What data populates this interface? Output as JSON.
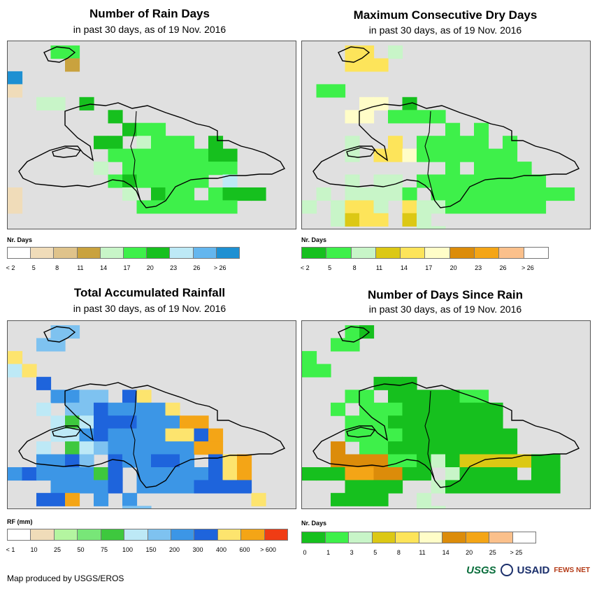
{
  "panels": [
    {
      "id": "rain-days",
      "title": "Number of Rain Days",
      "subtitle": "in past 30 days, as of 19 Nov. 2016",
      "legend_title": "Nr. Days",
      "legend_colors": [
        "#ffffff",
        "#f0dcb9",
        "#dfc38b",
        "#c9a23e",
        "#c8f5c8",
        "#3ef04a",
        "#16c01e",
        "#bde9f6",
        "#64b6ee",
        "#1e90d2"
      ],
      "legend_labels": [
        "< 2",
        "5",
        "8",
        "11",
        "14",
        "17",
        "20",
        "23",
        "26",
        "> 26"
      ],
      "grid": {
        "rows": [
          "...66.C.........",
          "....4C.C........",
          "A...............",
          "2C..............",
          "..55.7...........",
          "..CCCC.7BBB......",
          "..BBBBBC766......",
          "...CCC77C5666.7...",
          "...CCCC666666677..",
          "..CBC.5.66666666..",
          "..CBCCB6766666.8C.",
          "2.CB.BCC5.766B6777",
          "2.B.BBBC.6666666.B",
          "..BBC.BC.CCB.B...C",
          "........CC........"
        ]
      }
    },
    {
      "id": "max-dry-days",
      "title": "Maximum Consecutive Dry Days",
      "subtitle": "in past 30 days, as of 19 Nov. 2016",
      "legend_title": "Nr. Days",
      "legend_colors": [
        "#16c01e",
        "#3ef04a",
        "#c8f5c8",
        "#dcc814",
        "#fde45a",
        "#fffdc8",
        "#dc8c0a",
        "#f4a516",
        "#fbc08b",
        "#ffffff"
      ],
      "legend_labels": [
        "< 2",
        "5",
        "8",
        "11",
        "14",
        "17",
        "20",
        "23",
        "26",
        "> 26"
      ],
      "grid": {
        "rows": [
          "...55.3.........",
          "...555..........",
          "C...............",
          "C22.............",
          "....66.1.........",
          "...66.2222.......",
          "..........2.2.....",
          "...3..5.22222.2...",
          "...3.5562222222...",
          "..........2.2222..",
          "...3.33.222222222.",
          "C3.33332.2222222222",
          "3.3553.5332222222.",
          "..3455.43.........",
          "........33........"
        ]
      }
    },
    {
      "id": "total-rainfall",
      "title": "Total Accumulated Rainfall",
      "subtitle": "in past 30 days, as of 19 Nov. 2016",
      "legend_title": "RF (mm)",
      "legend_colors": [
        "#ffffff",
        "#f0dcb9",
        "#b4f5a0",
        "#78e678",
        "#3ec83e",
        "#bde9f6",
        "#7ec2f0",
        "#3c96e6",
        "#1e64dc",
        "#fde46e",
        "#f4a516",
        "#f03c14"
      ],
      "legend_labels": [
        "< 1",
        "10",
        "25",
        "50",
        "75",
        "100",
        "150",
        "200",
        "300",
        "400",
        "600",
        "> 600"
      ],
      "grid": {
        "rows": [
          "...77..........",
          "..77............",
          "A...............",
          "6A..............",
          "..9.............",
          "...8877.9A.......",
          "..6.7798888A.....",
          "...656999888KB...",
          "...66898888AA9B..",
          "..6.567888888KB..",
          "..8897.988998.9AK.",
          "89888859.888889AK.",
          "...88889.88889999.",
          "..99B.8.8........A",
          "........77........"
        ]
      }
    },
    {
      "id": "days-since-rain",
      "title": "Number of Days Since Rain",
      "subtitle": "in past 30 days, as of 19 Nov. 2016",
      "legend_title": "Nr. Days",
      "legend_colors": [
        "#16c01e",
        "#3ef04a",
        "#c8f5c8",
        "#dcc814",
        "#fde45a",
        "#fffdc8",
        "#dc8c0a",
        "#f4a516",
        "#fbc08b",
        "#ffffff"
      ],
      "legend_labels": [
        "0",
        "1",
        "3",
        "5",
        "8",
        "11",
        "14",
        "20",
        "25",
        "> 25"
      ],
      "grid": {
        "rows": [
          "...21..........",
          "..22............",
          "2...............",
          "22..............",
          ".....111.........",
          "...22.1111122.....",
          "..2.2221111111....",
          "...22211111111....",
          "...222211111111...",
          "..7.22111111111...",
          "..7777221314444411..",
          "111887711.31111.11.",
          "...1111..311111111.",
          "..1111..3.........",
          "........33........"
        ]
      }
    }
  ],
  "footer": {
    "credit": "Map produced by USGS/EROS",
    "logos": [
      "USGS",
      "USAID",
      "FEWS NET"
    ]
  }
}
